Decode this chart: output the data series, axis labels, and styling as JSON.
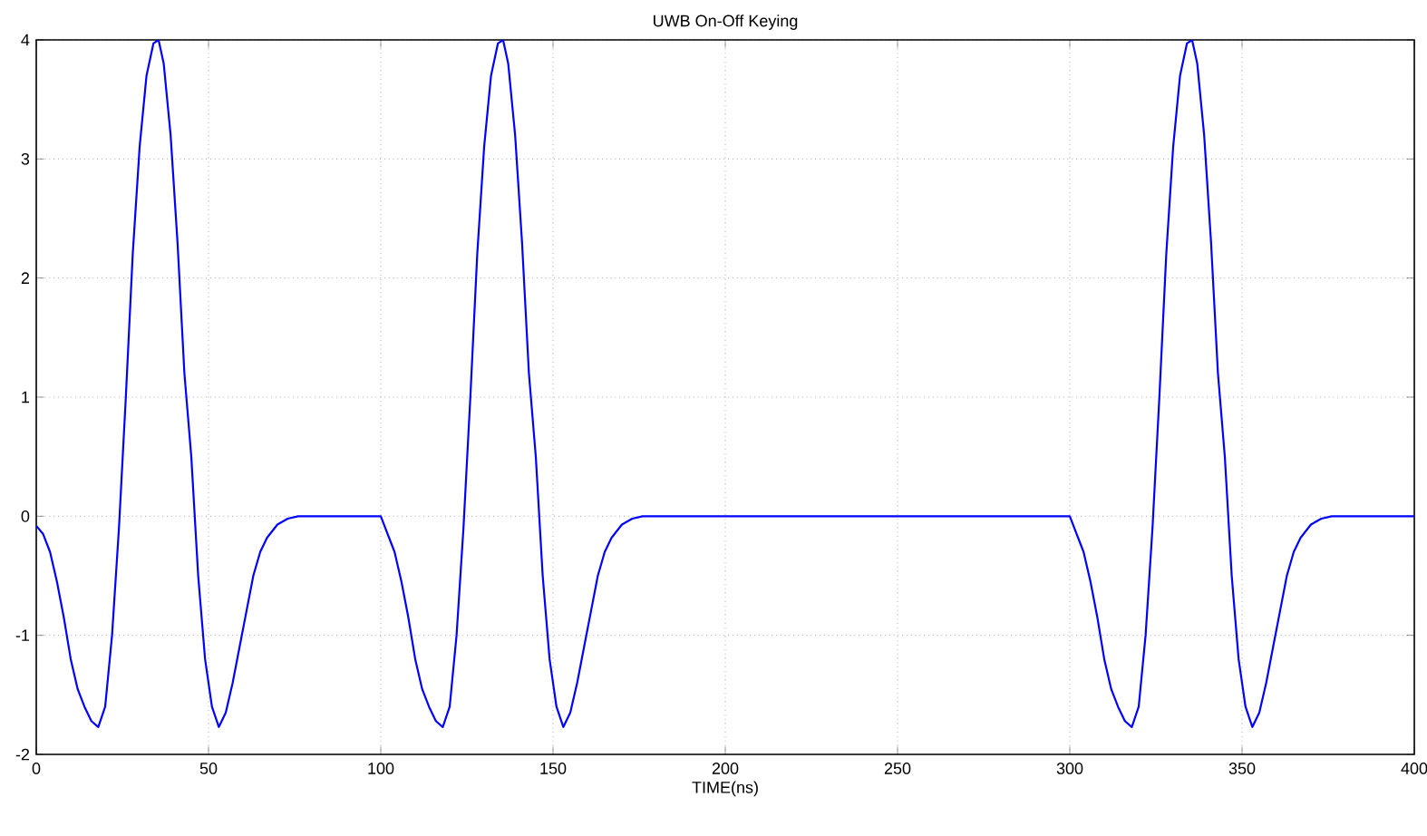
{
  "chart_data": {
    "type": "line",
    "title": "UWB On-Off Keying",
    "xlabel": "TIME(ns)",
    "x": [
      0,
      2,
      4,
      6,
      8,
      10,
      12,
      14,
      16,
      18,
      20,
      22,
      24,
      26,
      28,
      30,
      32,
      34,
      35.5,
      37,
      39,
      41,
      43,
      45,
      47,
      49,
      51,
      53,
      55,
      57,
      59,
      61,
      63,
      65,
      67,
      70,
      73,
      76,
      100,
      102,
      104,
      106,
      108,
      110,
      112,
      114,
      116,
      118,
      120,
      122,
      124,
      126,
      128,
      130,
      132,
      134,
      135.5,
      137,
      139,
      141,
      143,
      145,
      147,
      149,
      151,
      153,
      155,
      157,
      159,
      161,
      163,
      165,
      167,
      170,
      173,
      176,
      300,
      302,
      304,
      306,
      308,
      310,
      312,
      314,
      316,
      318,
      320,
      322,
      324,
      326,
      328,
      330,
      332,
      334,
      335.5,
      337,
      339,
      341,
      343,
      345,
      347,
      349,
      351,
      353,
      355,
      357,
      359,
      361,
      363,
      365,
      367,
      370,
      373,
      376,
      400
    ],
    "series": [
      {
        "color": "#0000ff",
        "values": [
          -0.08,
          -0.15,
          -0.3,
          -0.55,
          -0.85,
          -1.2,
          -1.45,
          -1.6,
          -1.72,
          -1.77,
          -1.6,
          -1.0,
          -0.1,
          1.0,
          2.2,
          3.1,
          3.7,
          3.97,
          4.0,
          3.8,
          3.2,
          2.3,
          1.2,
          0.5,
          -0.5,
          -1.2,
          -1.6,
          -1.77,
          -1.65,
          -1.4,
          -1.1,
          -0.8,
          -0.5,
          -0.3,
          -0.18,
          -0.07,
          -0.02,
          0,
          0,
          -0.15,
          -0.3,
          -0.55,
          -0.85,
          -1.2,
          -1.45,
          -1.6,
          -1.72,
          -1.77,
          -1.6,
          -1.0,
          -0.1,
          1.0,
          2.2,
          3.1,
          3.7,
          3.97,
          4.0,
          3.8,
          3.2,
          2.3,
          1.2,
          0.5,
          -0.5,
          -1.2,
          -1.6,
          -1.77,
          -1.65,
          -1.4,
          -1.1,
          -0.8,
          -0.5,
          -0.3,
          -0.18,
          -0.07,
          -0.02,
          0,
          0,
          -0.15,
          -0.3,
          -0.55,
          -0.85,
          -1.2,
          -1.45,
          -1.6,
          -1.72,
          -1.77,
          -1.6,
          -1.0,
          -0.1,
          1.0,
          2.2,
          3.1,
          3.7,
          3.97,
          4.0,
          3.8,
          3.2,
          2.3,
          1.2,
          0.5,
          -0.5,
          -1.2,
          -1.6,
          -1.77,
          -1.65,
          -1.4,
          -1.1,
          -0.8,
          -0.5,
          -0.3,
          -0.18,
          -0.07,
          -0.02,
          0,
          0
        ]
      }
    ],
    "xlim": [
      0,
      400
    ],
    "ylim": [
      -2,
      4
    ],
    "xticks": [
      0,
      50,
      100,
      150,
      200,
      250,
      300,
      350,
      400
    ],
    "yticks": [
      -2,
      -1,
      0,
      1,
      2,
      3,
      4
    ],
    "grid": true
  }
}
